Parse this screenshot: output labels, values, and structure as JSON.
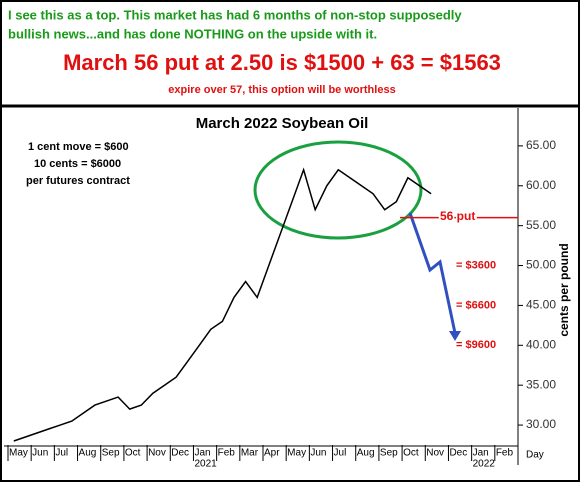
{
  "header": {
    "line1": "I see this as a top. This market has had 6 months of non-stop supposedly",
    "line2": "bullish news...and has done NOTHING on the upside with it.",
    "headline": "March 56 put at 2.50 is $1500 + 63 = $1563",
    "subline": "expire over 57, this option will be worthless"
  },
  "chart_data": {
    "type": "line",
    "title": "March 2022 Soybean Oil",
    "notes": [
      "1 cent move = $600",
      "10 cents = $6000",
      "per futures contract"
    ],
    "y_label": "cents per pound",
    "x_label": "Day",
    "years": [
      "2021",
      "2022"
    ],
    "categories": [
      "May",
      null,
      "Jun",
      null,
      "Jul",
      null,
      "Aug",
      null,
      "Sep",
      null,
      "Oct",
      null,
      "Nov",
      null,
      "Dec",
      null,
      "Jan",
      null,
      "Feb",
      null,
      "Mar",
      null,
      "Apr",
      null,
      "May",
      null,
      "Jun",
      null,
      "Jul",
      null,
      "Aug",
      null,
      "Sep",
      null,
      "Oct",
      null,
      "Nov",
      null,
      "Dec",
      null,
      "Jan",
      null,
      "Feb",
      null
    ],
    "values": [
      28,
      28.5,
      29,
      29.5,
      30,
      30.5,
      31.5,
      32.5,
      33,
      33.5,
      32,
      32.5,
      34,
      35,
      36,
      38,
      40,
      42,
      43,
      46,
      48,
      46,
      50,
      54,
      58,
      62,
      57,
      60,
      62,
      61,
      60,
      59,
      57,
      58,
      61,
      60,
      59,
      null,
      null,
      null,
      null,
      null,
      null,
      null
    ],
    "color": "#000000",
    "ylim": [
      27.5,
      69.5
    ],
    "yticks": [
      {
        "value": 30,
        "label": "30.00"
      },
      {
        "value": 35,
        "label": "35.00"
      },
      {
        "value": 40,
        "label": "40.00"
      },
      {
        "value": 45,
        "label": "45.00"
      },
      {
        "value": 50,
        "label": "50.00"
      },
      {
        "value": 55,
        "label": "55.00"
      },
      {
        "value": 60,
        "label": "60.00"
      },
      {
        "value": 65,
        "label": "65.00"
      }
    ],
    "annotations": [
      {
        "label": "56 put",
        "value": 56
      },
      {
        "label": "= $3600",
        "value": 50
      },
      {
        "label": "= $6600",
        "value": 45
      },
      {
        "label": "= $9600",
        "value": 40
      }
    ]
  }
}
